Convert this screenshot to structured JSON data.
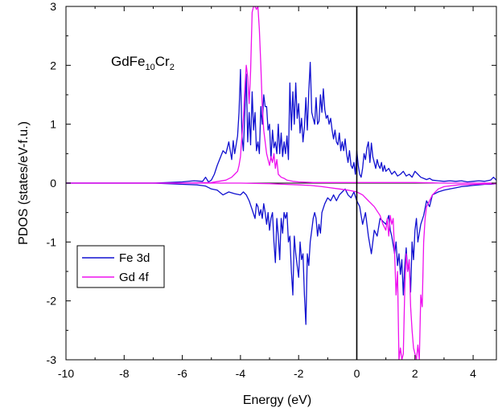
{
  "chart_data": {
    "type": "line",
    "title": "",
    "xlabel": "Energy (eV)",
    "ylabel": "PDOS (states/eV-f.u.)",
    "xlim": [
      -10,
      4.8
    ],
    "ylim": [
      -3,
      3
    ],
    "xticks": [
      -10,
      -8,
      -6,
      -4,
      -2,
      0,
      2,
      4
    ],
    "yticks": [
      -3,
      -2,
      -1,
      0,
      1,
      2,
      3
    ],
    "xtick_labels": [
      "-10",
      "-8",
      "-6",
      "-4",
      "-2",
      "0",
      "2",
      "4"
    ],
    "ytick_labels": [
      "-3",
      "-2",
      "-1",
      "0",
      "1",
      "2",
      "3"
    ],
    "grid": false,
    "legend_position": "lower-left",
    "annotation": {
      "base": "GdFe",
      "sub1": "10",
      "mid": "Cr",
      "sub2": "2"
    },
    "reference_line_x": 0,
    "series": [
      {
        "name": "Fe 3d",
        "color": "#1010d0",
        "up": {
          "x": [
            -10,
            -7,
            -6.5,
            -6,
            -5.6,
            -5.3,
            -5.2,
            -5.1,
            -5.0,
            -4.9,
            -4.8,
            -4.6,
            -4.5,
            -4.4,
            -4.3,
            -4.25,
            -4.2,
            -4.1,
            -4.05,
            -4.0,
            -3.95,
            -3.9,
            -3.85,
            -3.8,
            -3.75,
            -3.7,
            -3.65,
            -3.6,
            -3.55,
            -3.5,
            -3.45,
            -3.4,
            -3.35,
            -3.3,
            -3.25,
            -3.2,
            -3.15,
            -3.1,
            -3.05,
            -3.0,
            -2.95,
            -2.9,
            -2.85,
            -2.8,
            -2.75,
            -2.7,
            -2.65,
            -2.6,
            -2.55,
            -2.5,
            -2.45,
            -2.4,
            -2.35,
            -2.3,
            -2.25,
            -2.2,
            -2.15,
            -2.1,
            -2.05,
            -2.0,
            -1.95,
            -1.9,
            -1.85,
            -1.8,
            -1.75,
            -1.7,
            -1.65,
            -1.6,
            -1.55,
            -1.5,
            -1.45,
            -1.4,
            -1.35,
            -1.3,
            -1.25,
            -1.2,
            -1.15,
            -1.1,
            -1.05,
            -1.0,
            -0.95,
            -0.9,
            -0.85,
            -0.8,
            -0.75,
            -0.7,
            -0.65,
            -0.6,
            -0.55,
            -0.5,
            -0.45,
            -0.4,
            -0.35,
            -0.3,
            -0.25,
            -0.2,
            -0.15,
            -0.1,
            -0.05,
            0.0,
            0.05,
            0.1,
            0.15,
            0.2,
            0.25,
            0.3,
            0.35,
            0.4,
            0.45,
            0.5,
            0.55,
            0.6,
            0.65,
            0.7,
            0.75,
            0.8,
            0.85,
            0.9,
            0.95,
            1.0,
            1.1,
            1.2,
            1.3,
            1.4,
            1.5,
            1.6,
            1.7,
            1.8,
            1.9,
            2.0,
            2.1,
            2.2,
            2.3,
            2.4,
            2.5,
            2.6,
            2.8,
            3.0,
            3.2,
            3.4,
            3.6,
            3.8,
            4.0,
            4.2,
            4.4,
            4.6,
            4.7,
            4.8
          ],
          "y": [
            0,
            0,
            0.01,
            0.02,
            0.04,
            0.03,
            0.1,
            0.02,
            0.05,
            0.15,
            0.3,
            0.55,
            0.5,
            0.7,
            0.4,
            0.72,
            0.5,
            0.8,
            1.2,
            1.93,
            0.8,
            0.55,
            1.2,
            1.85,
            0.7,
            1.2,
            0.65,
            1.55,
            0.9,
            1.2,
            0.55,
            0.7,
            0.5,
            1.3,
            1.0,
            1.5,
            1.3,
            1.3,
            0.9,
            1.0,
            0.4,
            0.9,
            0.6,
            0.7,
            0.5,
            1.0,
            0.5,
            0.85,
            0.45,
            0.7,
            0.5,
            0.8,
            0.4,
            1.7,
            0.9,
            1.55,
            1.0,
            1.7,
            1.1,
            1.35,
            0.85,
            1.1,
            0.7,
            0.95,
            1.45,
            0.9,
            1.55,
            2.05,
            1.2,
            1.1,
            1.0,
            1.45,
            1.0,
            1.05,
            1.5,
            1.2,
            1.6,
            1.25,
            1.1,
            1.15,
            1.0,
            1.1,
            0.9,
            0.75,
            0.9,
            0.7,
            0.65,
            0.85,
            0.55,
            0.7,
            0.55,
            0.75,
            0.5,
            0.35,
            0.55,
            0.3,
            0.25,
            0.35,
            0.15,
            0.55,
            0.3,
            0.15,
            0.1,
            0.25,
            0.5,
            0.4,
            0.6,
            0.7,
            0.35,
            0.68,
            0.45,
            0.35,
            0.25,
            0.4,
            0.3,
            0.25,
            0.35,
            0.2,
            0.3,
            0.2,
            0.25,
            0.15,
            0.2,
            0.12,
            0.15,
            0.2,
            0.12,
            0.15,
            0.1,
            0.2,
            0.15,
            0.1,
            0.08,
            0.06,
            0.08,
            0.05,
            0.04,
            0.03,
            0.04,
            0.03,
            0.04,
            0.02,
            0.03,
            0.04,
            0.03,
            0.05,
            0.1,
            0.05
          ]
        },
        "down": {
          "x": [
            -10,
            -7,
            -6.5,
            -6,
            -5.5,
            -5.2,
            -5.0,
            -4.8,
            -4.6,
            -4.4,
            -4.2,
            -4.0,
            -3.9,
            -3.8,
            -3.7,
            -3.6,
            -3.5,
            -3.45,
            -3.4,
            -3.35,
            -3.3,
            -3.25,
            -3.2,
            -3.15,
            -3.1,
            -3.05,
            -3.0,
            -2.95,
            -2.9,
            -2.85,
            -2.8,
            -2.75,
            -2.7,
            -2.65,
            -2.6,
            -2.55,
            -2.5,
            -2.45,
            -2.4,
            -2.35,
            -2.3,
            -2.25,
            -2.2,
            -2.15,
            -2.1,
            -2.05,
            -2.0,
            -1.95,
            -1.9,
            -1.85,
            -1.8,
            -1.75,
            -1.7,
            -1.65,
            -1.6,
            -1.55,
            -1.5,
            -1.45,
            -1.4,
            -1.35,
            -1.3,
            -1.25,
            -1.2,
            -1.1,
            -1.0,
            -0.9,
            -0.8,
            -0.7,
            -0.6,
            -0.5,
            -0.4,
            -0.3,
            -0.2,
            -0.1,
            0.0,
            0.1,
            0.2,
            0.3,
            0.4,
            0.5,
            0.6,
            0.7,
            0.8,
            0.9,
            1.0,
            1.1,
            1.15,
            1.2,
            1.3,
            1.35,
            1.4,
            1.45,
            1.5,
            1.55,
            1.6,
            1.65,
            1.7,
            1.75,
            1.8,
            1.85,
            1.9,
            1.95,
            2.0,
            2.05,
            2.1,
            2.2,
            2.3,
            2.4,
            2.5,
            2.6,
            2.8,
            3.0,
            3.2,
            3.4,
            3.6,
            3.8,
            4.0,
            4.2,
            4.4,
            4.6,
            4.8
          ],
          "y": [
            0,
            0,
            -0.01,
            -0.02,
            -0.03,
            -0.05,
            -0.1,
            -0.12,
            -0.2,
            -0.15,
            -0.18,
            -0.2,
            -0.15,
            -0.2,
            -0.3,
            -0.45,
            -0.6,
            -0.35,
            -0.4,
            -0.55,
            -0.45,
            -0.6,
            -0.35,
            -0.5,
            -0.7,
            -0.5,
            -0.8,
            -0.6,
            -0.5,
            -1.0,
            -1.35,
            -0.6,
            -0.9,
            -1.3,
            -0.6,
            -0.85,
            -0.5,
            -0.6,
            -0.5,
            -1.0,
            -0.9,
            -1.5,
            -1.9,
            -0.9,
            -1.2,
            -1.4,
            -1.6,
            -1.0,
            -1.3,
            -1.2,
            -1.9,
            -2.4,
            -1.2,
            -1.4,
            -1.0,
            -0.8,
            -0.6,
            -0.5,
            -0.6,
            -0.9,
            -0.7,
            -0.85,
            -0.5,
            -0.35,
            -0.25,
            -0.3,
            -0.2,
            -0.3,
            -0.2,
            -0.15,
            -0.1,
            -0.2,
            -0.25,
            -0.15,
            -0.3,
            -0.4,
            -0.7,
            -0.5,
            -0.9,
            -1.2,
            -0.8,
            -0.9,
            -0.6,
            -0.65,
            -0.7,
            -0.55,
            -0.8,
            -0.9,
            -1.2,
            -1.0,
            -1.4,
            -1.2,
            -1.55,
            -1.3,
            -1.9,
            -1.4,
            -1.1,
            -1.5,
            -1.35,
            -1.85,
            -1.0,
            -1.3,
            -0.8,
            -0.6,
            -1.0,
            -0.7,
            -0.55,
            -0.3,
            -0.4,
            -0.2,
            -0.15,
            -0.12,
            -0.1,
            -0.08,
            -0.06,
            -0.05,
            -0.04,
            -0.03,
            -0.02,
            -0.02,
            -0.01
          ]
        }
      },
      {
        "name": "Gd 4f",
        "color": "#ee10ee",
        "up": {
          "x": [
            -10,
            -6,
            -5.0,
            -4.5,
            -4.3,
            -4.2,
            -4.1,
            -4.05,
            -4.0,
            -3.95,
            -3.9,
            -3.85,
            -3.8,
            -3.75,
            -3.7,
            -3.65,
            -3.6,
            -3.55,
            -3.5,
            -3.45,
            -3.4,
            -3.35,
            -3.3,
            -3.25,
            -3.2,
            -3.15,
            -3.1,
            -3.05,
            -3.0,
            -2.95,
            -2.9,
            -2.85,
            -2.8,
            -2.75,
            -2.7,
            -2.6,
            -2.5,
            -2.4,
            -2.2,
            -2.0,
            -1.5,
            -1.0,
            -0.5,
            0.0,
            0.5,
            1.0,
            2.0,
            3.0,
            4.0,
            4.8
          ],
          "y": [
            0,
            0,
            0.01,
            0.05,
            0.1,
            0.15,
            0.2,
            0.3,
            0.45,
            0.8,
            1.1,
            1.6,
            2.0,
            1.8,
            1.35,
            1.9,
            2.9,
            3.0,
            3.0,
            2.95,
            3.0,
            2.6,
            2.0,
            1.3,
            0.9,
            0.7,
            0.5,
            0.4,
            0.3,
            0.45,
            0.35,
            0.5,
            0.25,
            0.4,
            0.15,
            0.1,
            0.08,
            0.05,
            0.03,
            0.02,
            0.01,
            0.01,
            0.01,
            0.01,
            0.01,
            0.01,
            0.01,
            0.0,
            0.0,
            0.0
          ]
        },
        "down": {
          "x": [
            -10,
            -6,
            -4,
            -3,
            -2.5,
            -2.0,
            -1.6,
            -1.2,
            -0.9,
            -0.6,
            -0.3,
            0.0,
            0.2,
            0.4,
            0.6,
            0.8,
            0.9,
            1.0,
            1.05,
            1.1,
            1.15,
            1.2,
            1.25,
            1.3,
            1.35,
            1.4,
            1.45,
            1.5,
            1.55,
            1.6,
            1.65,
            1.7,
            1.75,
            1.8,
            1.85,
            1.9,
            1.95,
            2.0,
            2.05,
            2.1,
            2.15,
            2.2,
            2.25,
            2.3,
            2.35,
            2.4,
            2.5,
            2.6,
            2.8,
            3.0,
            3.5,
            4.0,
            4.8
          ],
          "y": [
            0,
            0,
            0,
            -0.01,
            -0.02,
            -0.03,
            -0.04,
            -0.06,
            -0.08,
            -0.1,
            -0.12,
            -0.15,
            -0.2,
            -0.3,
            -0.4,
            -0.55,
            -0.7,
            -0.8,
            -0.6,
            -0.9,
            -0.55,
            -0.7,
            -0.6,
            -1.2,
            -1.9,
            -1.5,
            -3.0,
            -2.8,
            -3.0,
            -2.9,
            -1.8,
            -1.2,
            -1.5,
            -1.3,
            -2.1,
            -2.5,
            -2.8,
            -2.9,
            -3.0,
            -2.75,
            -3.0,
            -1.9,
            -2.1,
            -1.0,
            -0.6,
            -0.4,
            -0.3,
            -0.2,
            -0.1,
            -0.06,
            -0.03,
            -0.02,
            -0.01
          ]
        }
      }
    ]
  }
}
